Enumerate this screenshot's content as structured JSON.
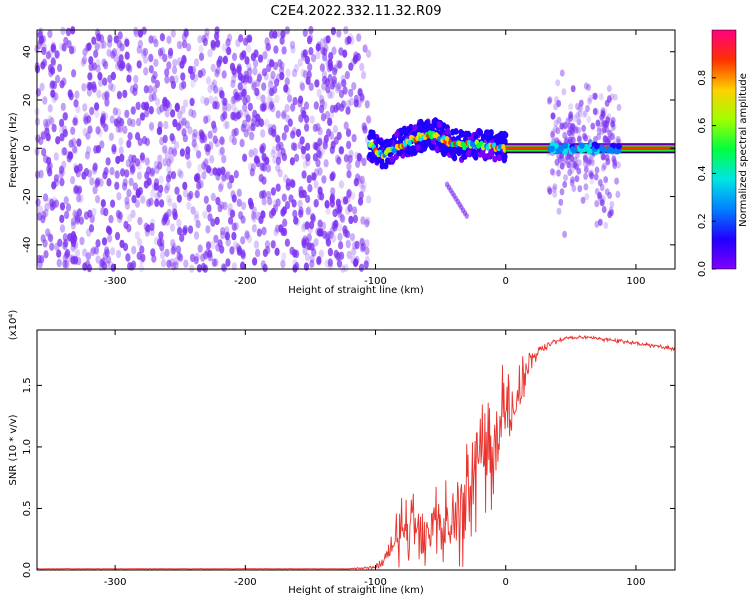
{
  "title": "C2E4.2022.332.11.32.R09",
  "colors": {
    "snr_line": "#e8332e",
    "noise_dots": "#7a2ff0",
    "colormap": [
      "#7f00ff",
      "#2000ff",
      "#0080ff",
      "#00e5e5",
      "#00ff40",
      "#a0ff00",
      "#ffd000",
      "#ff3000",
      "#ff0080"
    ]
  },
  "chart_data": [
    {
      "type": "heatmap",
      "xlabel": "Height of straight line (km)",
      "ylabel": "Frequency (Hz)",
      "xlim": [
        -360,
        130
      ],
      "ylim": [
        -50,
        49
      ],
      "xticks": [
        -300,
        -200,
        -100,
        0,
        100
      ],
      "yticks": [
        -40,
        -20,
        0,
        20,
        40
      ],
      "colorbar": {
        "label": "Normalized spectral amplitude",
        "range": [
          0.0,
          1.0
        ],
        "ticks": [
          0.0,
          0.2,
          0.4,
          0.6,
          0.8
        ]
      },
      "regions": [
        {
          "x_range": [
            -360,
            -105
          ],
          "freq_range": [
            -50,
            49
          ],
          "amplitude": 0.05,
          "pattern": "broadband_noise"
        },
        {
          "x_range": [
            -105,
            0
          ],
          "freq_center_track": [
            [
              -105,
              2
            ],
            [
              -95,
              -3
            ],
            [
              -85,
              0
            ],
            [
              -75,
              3
            ],
            [
              -65,
              5
            ],
            [
              -55,
              6
            ],
            [
              -45,
              3
            ],
            [
              -35,
              1
            ],
            [
              -25,
              2
            ],
            [
              -15,
              1
            ],
            [
              -5,
              0
            ],
            [
              0,
              0
            ]
          ],
          "amplitude": 0.75,
          "pattern": "wandering_tone"
        },
        {
          "x_range": [
            -45,
            -30
          ],
          "freq_range": [
            -28,
            -15
          ],
          "amplitude": 0.1,
          "pattern": "faint_streak"
        },
        {
          "x_range": [
            0,
            130
          ],
          "freq": 0,
          "amplitude": 0.95,
          "pattern": "steady_tone"
        },
        {
          "x_range": [
            33,
            87
          ],
          "freq_range": [
            -38,
            38
          ],
          "amplitude": 0.2,
          "pattern": "burst_noise"
        }
      ]
    },
    {
      "type": "line",
      "xlabel": "Height of straight line (km)",
      "ylabel": "SNR (10 * v/v)",
      "y_multiplier": "(x10⁴)",
      "xlim": [
        -360,
        130
      ],
      "ylim": [
        0,
        1.95
      ],
      "xticks": [
        -300,
        -200,
        -100,
        0,
        100
      ],
      "yticks": [
        0.0,
        0.5,
        1.0,
        1.5
      ],
      "series": [
        {
          "x": [
            -360,
            -300,
            -200,
            -120,
            -100,
            -95,
            -90,
            -85,
            -80,
            -75,
            -70,
            -65,
            -60,
            -55,
            -50,
            -45,
            -40,
            -35,
            -30,
            -25,
            -20,
            -15,
            -10,
            -5,
            0,
            5,
            10,
            15,
            20,
            25,
            30,
            40,
            50,
            60,
            70,
            80,
            90,
            100,
            110,
            120,
            130
          ],
          "y": [
            0.01,
            0.01,
            0.01,
            0.01,
            0.02,
            0.06,
            0.15,
            0.22,
            0.3,
            0.36,
            0.4,
            0.35,
            0.38,
            0.42,
            0.4,
            0.38,
            0.36,
            0.45,
            0.6,
            0.85,
            1.0,
            0.95,
            1.05,
            1.2,
            1.3,
            1.25,
            1.45,
            1.6,
            1.7,
            1.78,
            1.82,
            1.86,
            1.89,
            1.89,
            1.88,
            1.87,
            1.86,
            1.84,
            1.83,
            1.81,
            1.8
          ],
          "noise_band": [
            0.002,
            0.002,
            0.002,
            0.002,
            0.02,
            0.08,
            0.15,
            0.3,
            0.35,
            0.35,
            0.4,
            0.4,
            0.45,
            0.4,
            0.45,
            0.45,
            0.5,
            0.55,
            0.6,
            0.7,
            0.65,
            0.7,
            0.7,
            0.6,
            0.55,
            0.45,
            0.35,
            0.25,
            0.12,
            0.06,
            0.04,
            0.03,
            0.02,
            0.02,
            0.02,
            0.02,
            0.02,
            0.02,
            0.02,
            0.02,
            0.02
          ]
        }
      ]
    }
  ]
}
